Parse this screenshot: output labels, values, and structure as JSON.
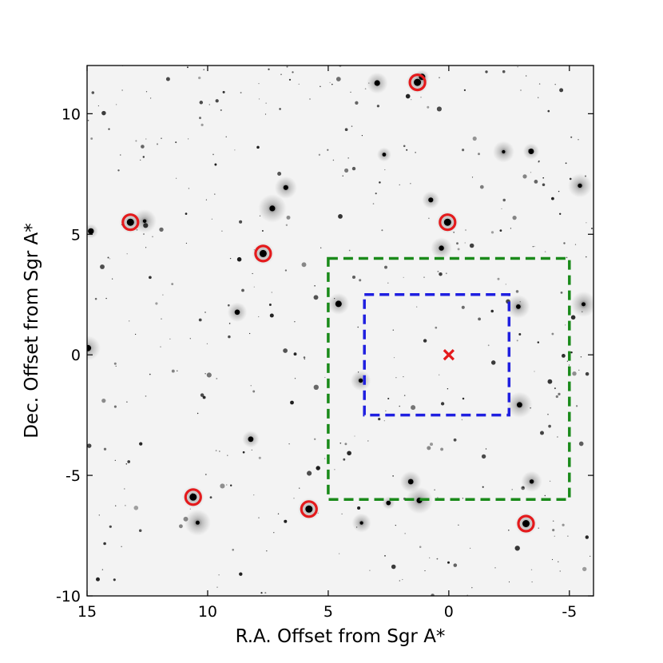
{
  "chart_data": {
    "type": "scatter",
    "title": "",
    "xlabel": "R.A. Offset from Sgr A*",
    "ylabel": "Dec. Offset from Sgr A*",
    "xlim": [
      15,
      -6
    ],
    "ylim": [
      -10,
      12
    ],
    "x_reversed": true,
    "grid": false,
    "background": "inverted grayscale near-infrared star field",
    "xticks": [
      {
        "value": 15,
        "label": "15"
      },
      {
        "value": 10,
        "label": "10"
      },
      {
        "value": 5,
        "label": "5"
      },
      {
        "value": 0,
        "label": "0"
      },
      {
        "value": -5,
        "label": "-5"
      }
    ],
    "yticks": [
      {
        "value": -10,
        "label": "-10"
      },
      {
        "value": -5,
        "label": "-5"
      },
      {
        "value": 0,
        "label": "0"
      },
      {
        "value": 5,
        "label": "5"
      },
      {
        "value": 10,
        "label": "10"
      }
    ],
    "marked_stars": {
      "marker": "circle",
      "color": "#e41a1c",
      "points": [
        {
          "x": 13.2,
          "y": 5.5
        },
        {
          "x": 7.7,
          "y": 4.2
        },
        {
          "x": 1.3,
          "y": 11.3
        },
        {
          "x": 0.05,
          "y": 5.5
        },
        {
          "x": 10.6,
          "y": -5.9
        },
        {
          "x": 5.8,
          "y": -6.4
        },
        {
          "x": -3.2,
          "y": -7.0
        }
      ]
    },
    "sgr_a_marker": {
      "x": 0,
      "y": 0,
      "marker": "x",
      "color": "#e41a1c"
    },
    "regions": [
      {
        "shape": "rectangle",
        "style": "dashed",
        "color": "#1a8a1a",
        "x": [
          5,
          -5
        ],
        "y": [
          -6,
          4
        ]
      },
      {
        "shape": "rectangle",
        "style": "dashed",
        "color": "#1f1fe0",
        "x": [
          3.5,
          -2.5
        ],
        "y": [
          -2.5,
          2.5
        ]
      }
    ]
  }
}
